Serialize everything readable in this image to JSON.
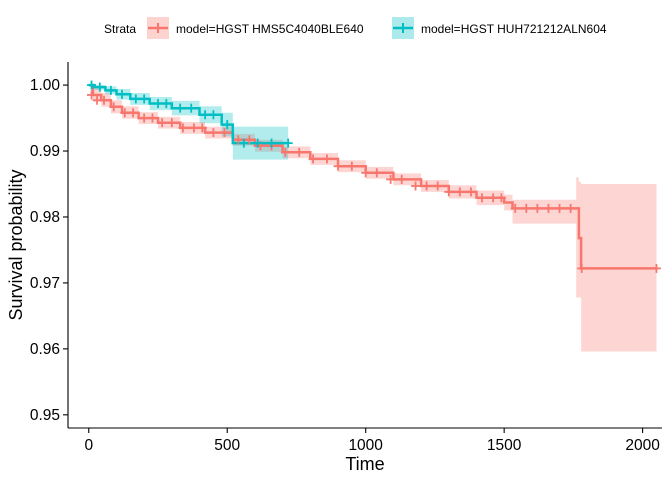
{
  "chart_data": {
    "type": "line",
    "subtype": "kaplan-meier survival curve with confidence bands and censor marks",
    "xlabel": "Time",
    "ylabel": "Survival probability",
    "xlim": [
      -75,
      2070
    ],
    "ylim": [
      0.948,
      1.0035
    ],
    "x_ticks": [
      0,
      500,
      1000,
      1500,
      2000
    ],
    "x_tick_labels": [
      "0",
      "500",
      "1000",
      "1500",
      "2000"
    ],
    "y_ticks": [
      0.95,
      0.96,
      0.97,
      0.98,
      0.99,
      1.0
    ],
    "y_tick_labels": [
      "0.95",
      "0.96",
      "0.97",
      "0.98",
      "0.99",
      "1.00"
    ],
    "grid": false,
    "legend": {
      "title": "Strata",
      "position": "top"
    },
    "series": [
      {
        "name": "model=HGST HMS5C4040BLE640",
        "color": "#F8766D",
        "band_color": "#F8766D",
        "step_x": [
          0,
          15,
          45,
          80,
          120,
          180,
          250,
          330,
          420,
          520,
          600,
          700,
          800,
          900,
          1000,
          1100,
          1200,
          1300,
          1400,
          1500,
          1530,
          1760,
          1770,
          1778,
          2050
        ],
        "step_y": [
          1.0,
          0.9985,
          0.9977,
          0.9967,
          0.9958,
          0.995,
          0.9943,
          0.9935,
          0.9928,
          0.9917,
          0.9908,
          0.9898,
          0.9888,
          0.9877,
          0.9867,
          0.9857,
          0.9847,
          0.9838,
          0.9829,
          0.9822,
          0.9813,
          0.9813,
          0.9768,
          0.9722,
          0.9722
        ],
        "upper": [
          1.0,
          0.9995,
          0.9988,
          0.9977,
          0.9968,
          0.9959,
          0.9952,
          0.9944,
          0.9937,
          0.9926,
          0.9917,
          0.9907,
          0.9897,
          0.9886,
          0.9876,
          0.9866,
          0.9856,
          0.9848,
          0.984,
          0.9834,
          0.9826,
          0.986,
          0.9853,
          0.985,
          0.985
        ],
        "lower": [
          1.0,
          0.9975,
          0.9967,
          0.9957,
          0.9949,
          0.9941,
          0.9934,
          0.9926,
          0.9919,
          0.9908,
          0.9899,
          0.9889,
          0.9879,
          0.9868,
          0.9858,
          0.9848,
          0.9838,
          0.9828,
          0.9818,
          0.981,
          0.979,
          0.9678,
          0.9678,
          0.9596,
          0.9596
        ],
        "censor_x": [
          10,
          30,
          55,
          90,
          130,
          160,
          200,
          230,
          265,
          300,
          340,
          380,
          410,
          450,
          490,
          540,
          580,
          620,
          660,
          710,
          760,
          810,
          860,
          900,
          950,
          1000,
          1040,
          1090,
          1130,
          1180,
          1220,
          1260,
          1300,
          1340,
          1380,
          1420,
          1460,
          1490,
          1540,
          1580,
          1620,
          1660,
          1700,
          1740,
          1780,
          2050
        ],
        "censor_y": [
          0.9985,
          0.9977,
          0.9977,
          0.9967,
          0.9958,
          0.9958,
          0.995,
          0.995,
          0.9943,
          0.9943,
          0.9935,
          0.9935,
          0.9935,
          0.9928,
          0.9928,
          0.9917,
          0.9917,
          0.9908,
          0.9908,
          0.9898,
          0.9898,
          0.9888,
          0.9888,
          0.9877,
          0.9877,
          0.9867,
          0.9867,
          0.9857,
          0.9857,
          0.9847,
          0.9847,
          0.9847,
          0.9838,
          0.9838,
          0.9838,
          0.9829,
          0.9829,
          0.9829,
          0.9813,
          0.9813,
          0.9813,
          0.9813,
          0.9813,
          0.9813,
          0.9722,
          0.9722
        ]
      },
      {
        "name": "model=HGST HUH721212ALN604",
        "color": "#00BFC4",
        "band_color": "#00BFC4",
        "step_x": [
          0,
          20,
          60,
          100,
          150,
          220,
          300,
          400,
          480,
          520,
          720
        ],
        "step_y": [
          1.0,
          0.9997,
          0.9992,
          0.9986,
          0.9979,
          0.9972,
          0.9965,
          0.9955,
          0.994,
          0.9912,
          0.9912
        ],
        "upper": [
          1.0,
          1.0,
          0.9998,
          0.9994,
          0.9988,
          0.9982,
          0.9976,
          0.9968,
          0.9958,
          0.9937,
          0.9937
        ],
        "lower": [
          1.0,
          0.9993,
          0.9986,
          0.9978,
          0.997,
          0.9962,
          0.9954,
          0.9942,
          0.9922,
          0.9887,
          0.9887
        ],
        "censor_x": [
          10,
          40,
          80,
          120,
          170,
          200,
          250,
          280,
          330,
          370,
          420,
          450,
          500,
          560,
          610,
          660,
          720
        ],
        "censor_y": [
          1.0,
          0.9997,
          0.9992,
          0.9986,
          0.9979,
          0.9979,
          0.9972,
          0.9972,
          0.9965,
          0.9965,
          0.9955,
          0.9955,
          0.994,
          0.9912,
          0.9912,
          0.9912,
          0.9912
        ]
      }
    ]
  }
}
